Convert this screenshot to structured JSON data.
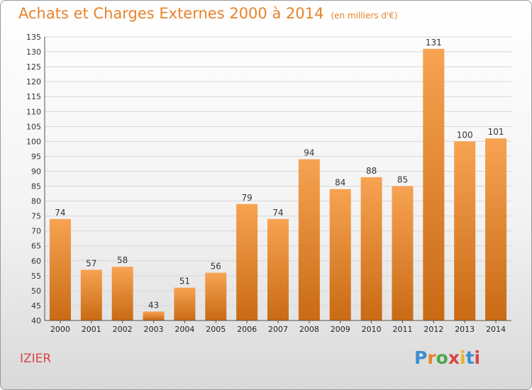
{
  "title": "Achats et Charges Externes 2000 à 2014",
  "unit": "(en milliers d'€)",
  "commune": "IZIER",
  "logo": {
    "text": "Proxiti",
    "colors": [
      "#3a8fd0",
      "#e8832a",
      "#4aa84a",
      "#d94545",
      "#e8b52a",
      "#3a8fd0",
      "#d94545"
    ]
  },
  "colors": {
    "accent": "#e8832a",
    "bar_top": "#f7a352",
    "bar_bottom": "#c96a14"
  },
  "chart_data": {
    "type": "bar",
    "title": "Achats et Charges Externes 2000 à 2014",
    "categories": [
      "2000",
      "2001",
      "2002",
      "2003",
      "2004",
      "2005",
      "2006",
      "2007",
      "2008",
      "2009",
      "2010",
      "2011",
      "2012",
      "2013",
      "2014"
    ],
    "values": [
      74,
      57,
      58,
      43,
      51,
      56,
      79,
      74,
      94,
      84,
      88,
      85,
      131,
      100,
      101
    ],
    "ylim": [
      40,
      135
    ],
    "yticks": [
      40,
      45,
      50,
      55,
      60,
      65,
      70,
      75,
      80,
      85,
      90,
      95,
      100,
      105,
      110,
      115,
      120,
      125,
      130,
      135
    ],
    "grid": true,
    "xlabel": "",
    "ylabel": ""
  }
}
